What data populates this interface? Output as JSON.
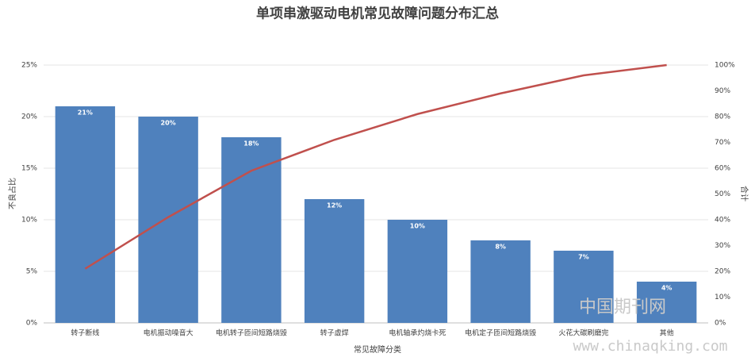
{
  "chart_data": {
    "type": "bar",
    "title": "单项串激驱动电机常见故障问题分布汇总",
    "x_label": "常见故障分类",
    "y_label": "不良占比",
    "y2_label": "合计",
    "categories": [
      "转子断线",
      "电机振动噪音大",
      "电机转子匝间短路烧毁",
      "转子虚焊",
      "电机轴承灼烧卡死",
      "电机定子匝间短路烧毁",
      "火花大碳刷磨完",
      "其他"
    ],
    "values": [
      21,
      20,
      18,
      12,
      10,
      8,
      7,
      4
    ],
    "value_labels": [
      "21%",
      "20%",
      "18%",
      "12%",
      "10%",
      "8%",
      "7%",
      "4%"
    ],
    "color": "#4f81bd",
    "line": {
      "values": [
        21,
        41,
        59,
        71,
        81,
        89,
        96,
        100
      ],
      "color": "#c0504d",
      "axis": "y2"
    },
    "ylim": [
      0,
      25
    ],
    "yticks": [
      {
        "value": 0,
        "label": "0%"
      },
      {
        "value": 5,
        "label": "5%"
      },
      {
        "value": 10,
        "label": "10%"
      },
      {
        "value": 15,
        "label": "15%"
      },
      {
        "value": 20,
        "label": "20%"
      },
      {
        "value": 25,
        "label": "25%"
      }
    ],
    "y2lim": [
      0,
      100
    ],
    "y2ticks": [
      {
        "value": 0,
        "label": "0%"
      },
      {
        "value": 10,
        "label": "10%"
      },
      {
        "value": 20,
        "label": "20%"
      },
      {
        "value": 30,
        "label": "30%"
      },
      {
        "value": 40,
        "label": "40%"
      },
      {
        "value": 50,
        "label": "50%"
      },
      {
        "value": 60,
        "label": "60%"
      },
      {
        "value": 70,
        "label": "70%"
      },
      {
        "value": 80,
        "label": "80%"
      },
      {
        "value": 90,
        "label": "90%"
      },
      {
        "value": 100,
        "label": "100%"
      }
    ],
    "grid": true
  },
  "watermark": {
    "cn": "中国期刊网",
    "url": "www.chinaqking.com"
  }
}
